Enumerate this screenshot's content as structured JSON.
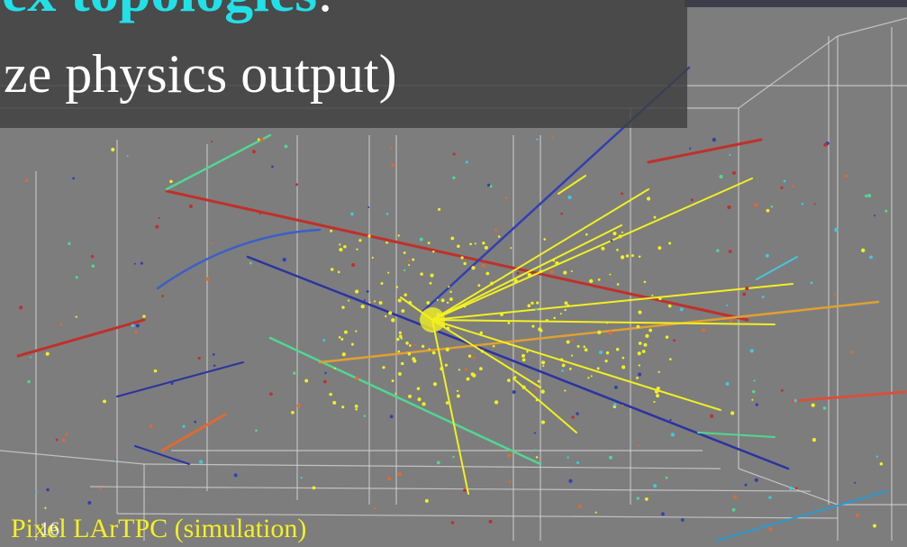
{
  "slide": {
    "title_line1": "ex topologies",
    "title_line1_suffix": ":",
    "title_line2": "ze physics output)",
    "caption": "Pixel LArTPC (simulation)",
    "page_number": "16"
  }
}
